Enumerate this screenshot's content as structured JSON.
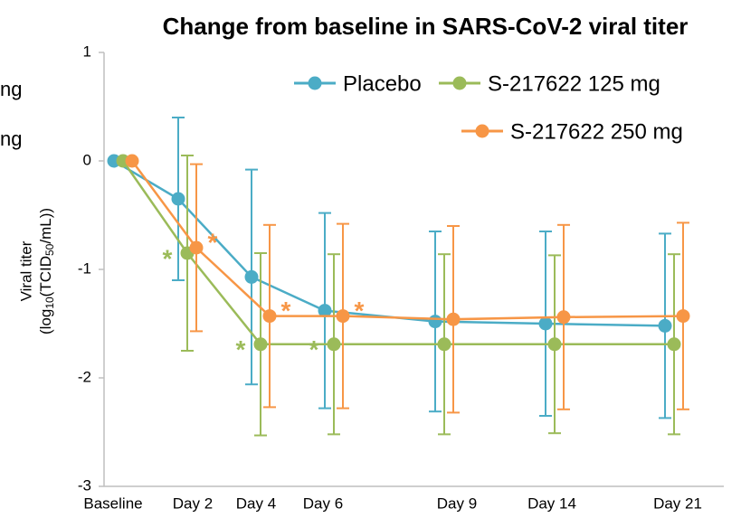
{
  "chart_data": {
    "type": "line",
    "title": "Change from baseline in SARS-CoV-2 viral titer",
    "y_label": {
      "line1": "Viral titer",
      "line2": [
        "(log",
        "10",
        "(TCID",
        "50",
        "/mL))"
      ]
    },
    "cropped_fragments": [
      "ng",
      "ng"
    ],
    "categories": [
      "Baseline",
      "Day 2",
      "Day 4",
      "Day 6",
      "Day 9",
      "Day 14",
      "Day 21"
    ],
    "ylim": [
      -3,
      1
    ],
    "yticks": [
      -3,
      -2,
      -1,
      0,
      1
    ],
    "grid": false,
    "legend": "top-right",
    "series": [
      {
        "name": "Placebo",
        "color": "#4bacc6",
        "values": [
          0,
          -0.35,
          -1.07,
          -1.38,
          -1.48,
          -1.5,
          -1.52
        ],
        "errors": [
          null,
          0.75,
          0.99,
          0.9,
          0.83,
          0.85,
          0.85
        ],
        "annotations": [
          null,
          null,
          null,
          null,
          null,
          null,
          null
        ]
      },
      {
        "name": "S-217622 125 mg",
        "color": "#9bbb59",
        "values": [
          0,
          -0.85,
          -1.69,
          -1.69,
          -1.69,
          -1.69,
          -1.69
        ],
        "errors": [
          null,
          0.9,
          0.84,
          0.83,
          0.83,
          0.82,
          0.83
        ],
        "annotations": [
          null,
          "*",
          "*",
          "*",
          null,
          null,
          null
        ]
      },
      {
        "name": "S-217622 250 mg",
        "color": "#f79646",
        "values": [
          0,
          -0.8,
          -1.43,
          -1.43,
          -1.46,
          -1.44,
          -1.43
        ],
        "errors": [
          null,
          0.77,
          0.84,
          0.85,
          0.86,
          0.85,
          0.86
        ],
        "annotations": [
          null,
          "*",
          "*",
          "*",
          null,
          null,
          null
        ]
      }
    ]
  }
}
